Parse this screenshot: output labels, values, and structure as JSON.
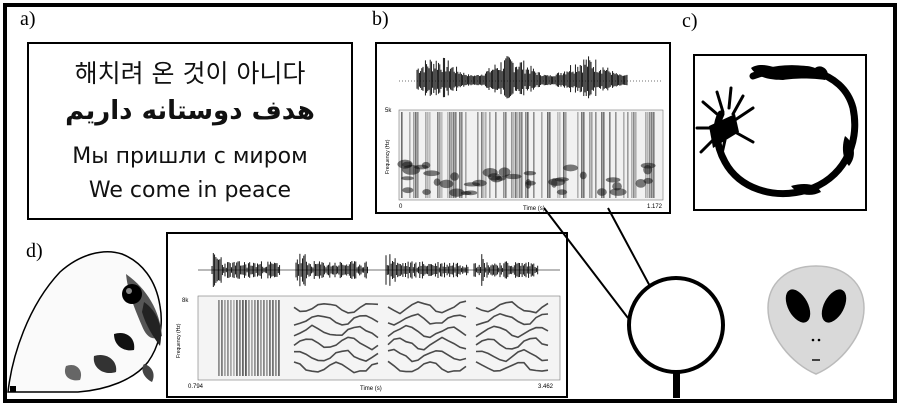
{
  "labels": {
    "a": "a)",
    "b": "b)",
    "c": "c)",
    "d": "d)"
  },
  "panel_a": {
    "lines": [
      "해치려 온 것이 아니다",
      "هدف دوستانه داریم",
      "Мы пришли с миром",
      "We come in peace"
    ]
  },
  "panel_b": {
    "axis_y_top": "5k",
    "axis_y_label": "Frequency (Hz)",
    "axis_x_start": "0",
    "axis_x_end": "1.172",
    "axis_x_label": "Time (s)"
  },
  "panel_d": {
    "axis_y_top": "8k",
    "axis_y_label": "Frequency (Hz)",
    "axis_x_start": "0.794",
    "axis_x_end": "3.462",
    "axis_x_label": "Time (s)"
  },
  "colors": {
    "ink": "#000000",
    "alien_head": "#d9d9d9"
  },
  "icons": [
    "parrot-head-icon",
    "alien-head-icon",
    "speech-bubble-icon",
    "glyph-circle-icon"
  ]
}
